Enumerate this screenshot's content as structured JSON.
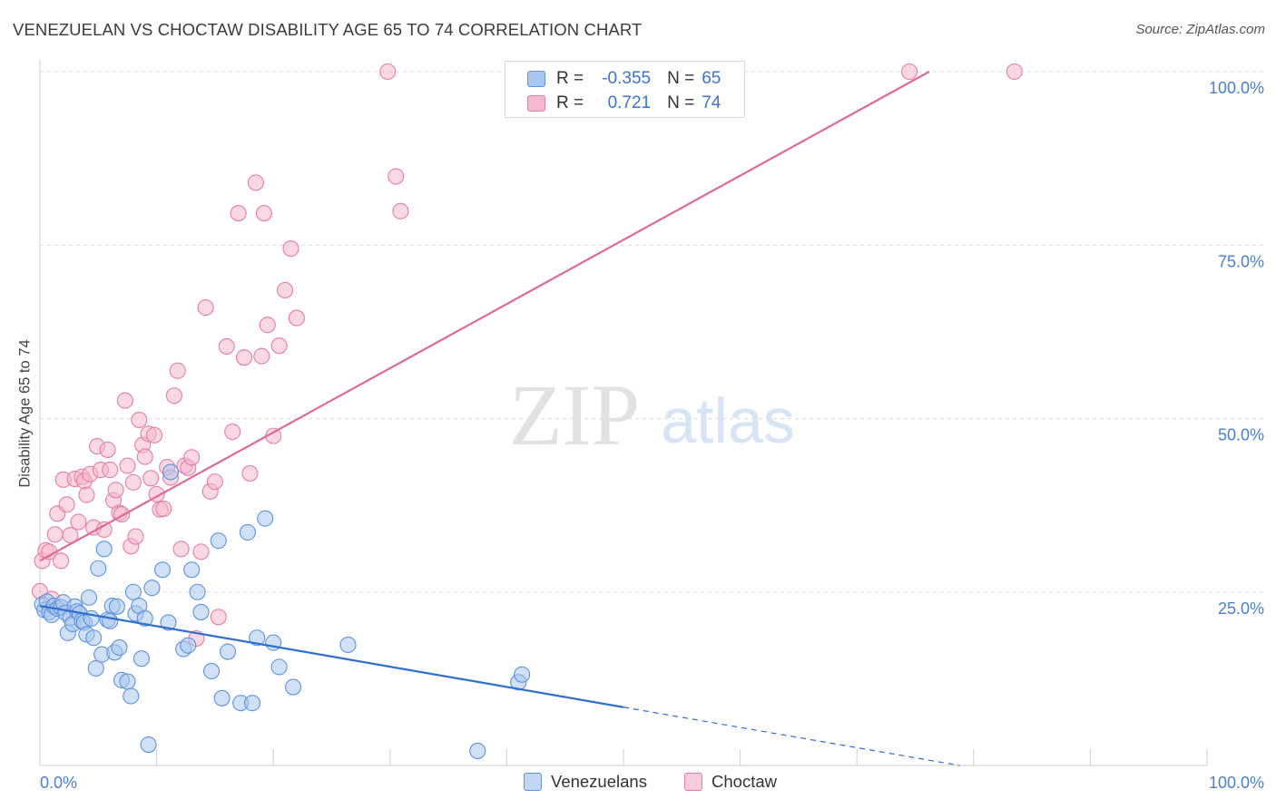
{
  "title": "VENEZUELAN VS CHOCTAW DISABILITY AGE 65 TO 74 CORRELATION CHART",
  "source": "Source: ZipAtlas.com",
  "watermark": {
    "zip": "ZIP",
    "atlas": "atlas"
  },
  "colors": {
    "blue_fill": "#a9c6ef",
    "blue_stroke": "#5f93dc",
    "blue_line": "#2f6fd0",
    "pink_fill": "#f5b8cc",
    "pink_stroke": "#e37fa0",
    "pink_line": "#e06a93",
    "tick_text": "#4a7fcf",
    "grid": "#dddddd"
  },
  "legend": {
    "rows": [
      {
        "r_label": "R =",
        "r_value": "-0.355",
        "n_label": "N =",
        "n_value": "65"
      },
      {
        "r_label": "R =",
        "r_value": "0.721",
        "n_label": "N =",
        "n_value": "74"
      }
    ]
  },
  "bottom_legend": {
    "venezuelans": "Venezuelans",
    "choctaw": "Choctaw"
  },
  "chart_data": {
    "type": "scatter",
    "title": "VENEZUELAN VS CHOCTAW DISABILITY AGE 65 TO 74 CORRELATION CHART",
    "xlabel": "",
    "ylabel": "Disability Age 65 to 74",
    "xlim": [
      0,
      100
    ],
    "ylim": [
      0,
      100
    ],
    "x_tick_labels": [
      {
        "value": 0,
        "label": "0.0%"
      },
      {
        "value": 100,
        "label": "100.0%"
      }
    ],
    "y_tick_labels": [
      {
        "value": 25,
        "label": "25.0%"
      },
      {
        "value": 50,
        "label": "50.0%"
      },
      {
        "value": 75,
        "label": "75.0%"
      },
      {
        "value": 100,
        "label": "100.0%"
      }
    ],
    "grid": true,
    "legend_position": "top-center",
    "series": [
      {
        "name": "Venezuelans",
        "r": -0.355,
        "n": 65,
        "trend": {
          "x": [
            0,
            50
          ],
          "y": [
            23.0,
            8.4
          ],
          "dashed_to": {
            "x": 78.8,
            "y": 0
          }
        },
        "points": [
          [
            0.2,
            23.2
          ],
          [
            0.4,
            22.4
          ],
          [
            0.6,
            23.6
          ],
          [
            0.8,
            22.1
          ],
          [
            1.0,
            21.7
          ],
          [
            1.2,
            23.0
          ],
          [
            1.5,
            22.6
          ],
          [
            1.8,
            22.8
          ],
          [
            2.0,
            23.5
          ],
          [
            2.2,
            22.0
          ],
          [
            2.4,
            19.1
          ],
          [
            2.6,
            21.3
          ],
          [
            2.8,
            20.4
          ],
          [
            3.0,
            22.9
          ],
          [
            3.2,
            22.2
          ],
          [
            3.4,
            21.9
          ],
          [
            3.6,
            20.8
          ],
          [
            3.8,
            20.6
          ],
          [
            4.0,
            18.9
          ],
          [
            4.2,
            24.2
          ],
          [
            4.4,
            21.2
          ],
          [
            4.6,
            18.4
          ],
          [
            4.8,
            14.0
          ],
          [
            5.0,
            28.4
          ],
          [
            5.3,
            16.0
          ],
          [
            5.5,
            31.2
          ],
          [
            5.8,
            21.0
          ],
          [
            6.0,
            20.8
          ],
          [
            6.2,
            23.0
          ],
          [
            6.4,
            16.3
          ],
          [
            6.6,
            22.9
          ],
          [
            6.8,
            17.0
          ],
          [
            7.0,
            12.3
          ],
          [
            7.5,
            12.1
          ],
          [
            7.8,
            10.0
          ],
          [
            8.0,
            25.0
          ],
          [
            8.2,
            21.9
          ],
          [
            8.5,
            23.0
          ],
          [
            8.7,
            15.4
          ],
          [
            9.0,
            21.2
          ],
          [
            9.3,
            3.0
          ],
          [
            9.6,
            25.6
          ],
          [
            10.5,
            28.2
          ],
          [
            11.0,
            20.6
          ],
          [
            11.2,
            42.3
          ],
          [
            12.3,
            16.8
          ],
          [
            12.7,
            17.3
          ],
          [
            13.0,
            28.2
          ],
          [
            13.5,
            25.0
          ],
          [
            13.8,
            22.1
          ],
          [
            14.7,
            13.6
          ],
          [
            15.3,
            32.4
          ],
          [
            15.6,
            9.7
          ],
          [
            16.1,
            16.4
          ],
          [
            17.2,
            9.0
          ],
          [
            17.8,
            33.6
          ],
          [
            18.2,
            9.0
          ],
          [
            18.6,
            18.4
          ],
          [
            19.3,
            35.6
          ],
          [
            20.0,
            17.7
          ],
          [
            20.5,
            14.2
          ],
          [
            21.7,
            11.3
          ],
          [
            26.4,
            17.4
          ],
          [
            37.5,
            2.1
          ],
          [
            41.0,
            12.0
          ],
          [
            41.3,
            13.1
          ]
        ]
      },
      {
        "name": "Choctaw",
        "r": 0.721,
        "n": 74,
        "trend": {
          "x": [
            0,
            76.2
          ],
          "y": [
            29.5,
            100
          ]
        },
        "points": [
          [
            0.0,
            25.1
          ],
          [
            0.2,
            29.5
          ],
          [
            0.5,
            31.0
          ],
          [
            0.8,
            30.8
          ],
          [
            1.0,
            24.0
          ],
          [
            1.3,
            33.3
          ],
          [
            1.5,
            36.3
          ],
          [
            1.8,
            29.5
          ],
          [
            2.0,
            41.2
          ],
          [
            2.3,
            37.6
          ],
          [
            2.6,
            33.2
          ],
          [
            3.0,
            41.3
          ],
          [
            3.3,
            35.1
          ],
          [
            3.6,
            41.6
          ],
          [
            3.8,
            41.0
          ],
          [
            4.0,
            39.0
          ],
          [
            4.3,
            42.0
          ],
          [
            4.6,
            34.3
          ],
          [
            4.9,
            46.0
          ],
          [
            5.2,
            42.6
          ],
          [
            5.5,
            34.0
          ],
          [
            5.8,
            45.5
          ],
          [
            6.0,
            42.6
          ],
          [
            6.3,
            38.2
          ],
          [
            6.5,
            39.7
          ],
          [
            6.8,
            36.4
          ],
          [
            7.0,
            36.2
          ],
          [
            7.3,
            52.6
          ],
          [
            7.5,
            43.2
          ],
          [
            7.8,
            31.6
          ],
          [
            8.0,
            40.8
          ],
          [
            8.2,
            33.0
          ],
          [
            8.5,
            49.8
          ],
          [
            8.8,
            46.2
          ],
          [
            9.0,
            44.5
          ],
          [
            9.3,
            47.8
          ],
          [
            9.5,
            41.4
          ],
          [
            9.8,
            47.6
          ],
          [
            10.0,
            39.1
          ],
          [
            10.3,
            36.9
          ],
          [
            10.6,
            37.0
          ],
          [
            10.9,
            43.0
          ],
          [
            11.2,
            41.5
          ],
          [
            11.5,
            53.3
          ],
          [
            11.8,
            56.9
          ],
          [
            12.1,
            31.2
          ],
          [
            12.4,
            43.2
          ],
          [
            12.7,
            42.9
          ],
          [
            13.0,
            44.4
          ],
          [
            13.4,
            18.3
          ],
          [
            13.8,
            30.8
          ],
          [
            14.2,
            66.0
          ],
          [
            14.6,
            39.5
          ],
          [
            15.0,
            40.9
          ],
          [
            15.3,
            21.4
          ],
          [
            16.0,
            60.4
          ],
          [
            16.5,
            48.1
          ],
          [
            17.0,
            79.6
          ],
          [
            17.5,
            58.8
          ],
          [
            18.0,
            42.1
          ],
          [
            18.5,
            84.0
          ],
          [
            19.0,
            59.0
          ],
          [
            19.5,
            63.5
          ],
          [
            20.0,
            47.5
          ],
          [
            20.5,
            60.5
          ],
          [
            21.0,
            68.5
          ],
          [
            21.5,
            74.5
          ],
          [
            22.0,
            64.5
          ],
          [
            29.8,
            100.0
          ],
          [
            30.5,
            84.9
          ],
          [
            30.9,
            79.9
          ],
          [
            74.5,
            100.0
          ],
          [
            83.5,
            100.0
          ],
          [
            19.2,
            79.6
          ]
        ]
      }
    ]
  }
}
